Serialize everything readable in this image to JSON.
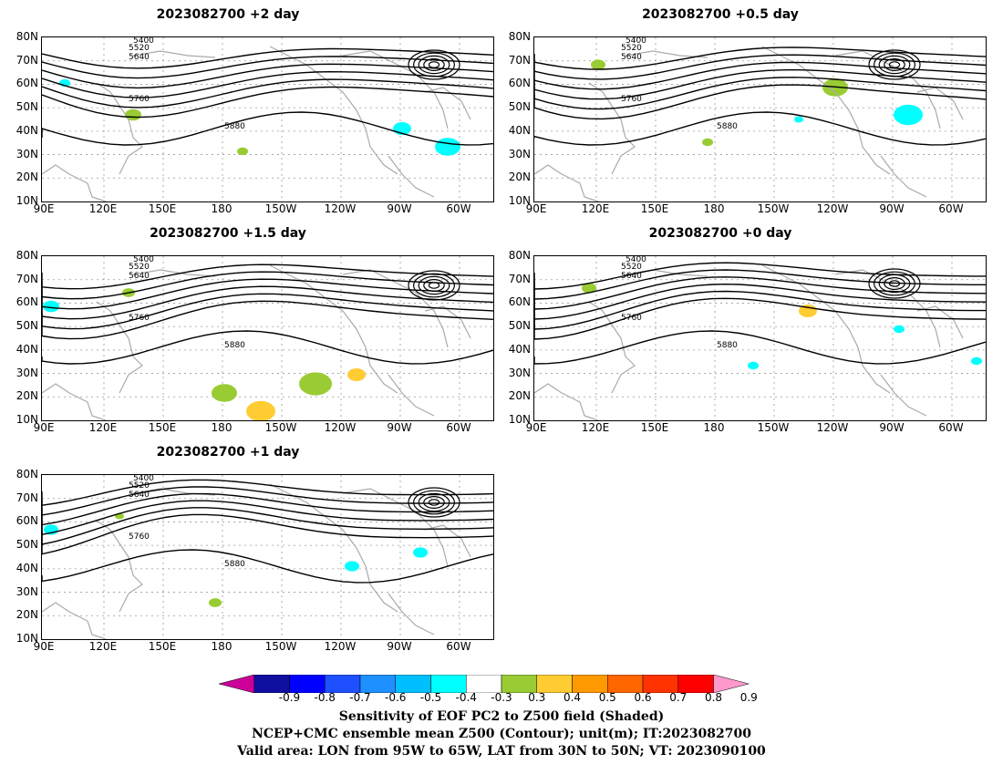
{
  "panels": [
    {
      "title": "2023082700 +2 day",
      "pos": "top-left"
    },
    {
      "title": "2023082700 +0.5 day",
      "pos": "top-right"
    },
    {
      "title": "2023082700 +1.5 day",
      "pos": "mid-left"
    },
    {
      "title": "2023082700 +0 day",
      "pos": "mid-right"
    },
    {
      "title": "2023082700 +1 day",
      "pos": "bottom-left"
    }
  ],
  "lat_labels": [
    "80N",
    "70N",
    "60N",
    "50N",
    "40N",
    "30N",
    "20N",
    "10N"
  ],
  "lon_labels": [
    "90E",
    "120E",
    "150E",
    "180",
    "150W",
    "120W",
    "90W",
    "60W"
  ],
  "contour_labels": [
    "5400",
    "5520",
    "5640",
    "5760",
    "5880"
  ],
  "colorbar": {
    "ticks": [
      "-0.9",
      "-0.8",
      "-0.7",
      "-0.6",
      "-0.5",
      "-0.4",
      "-0.3",
      "0.3",
      "0.4",
      "0.5",
      "0.6",
      "0.7",
      "0.8",
      "0.9"
    ],
    "colors": [
      "#cc0099",
      "#1010a0",
      "#0000ff",
      "#1e50ff",
      "#1e90ff",
      "#00bfff",
      "#00ffff",
      "#ffffff",
      "#99cc33",
      "#ffcc33",
      "#ff9900",
      "#ff6600",
      "#ff3300",
      "#ff0000",
      "#ff99cc"
    ]
  },
  "caption": {
    "line1": "Sensitivity of EOF PC2 to Z500 field (Shaded)",
    "line2": "NCEP+CMC ensemble mean Z500 (Contour); unit(m); IT:2023082700",
    "line3": "Valid area: LON from 95W to 65W, LAT from 30N to 50N; VT: 2023090100"
  }
}
